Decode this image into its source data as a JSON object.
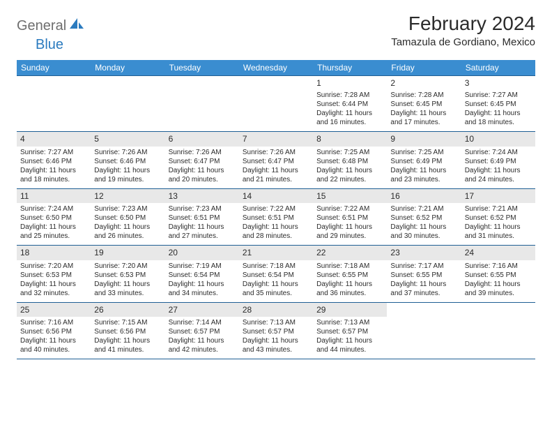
{
  "brand": {
    "text_gray": "General",
    "text_blue": "Blue"
  },
  "title": "February 2024",
  "location": "Tamazula de Gordiano, Mexico",
  "colors": {
    "header_bg": "#3a8dd0",
    "header_text": "#ffffff",
    "row_border": "#1f5f94",
    "band_bg": "#e8e8e8",
    "logo_gray": "#6e6e6e",
    "logo_blue": "#2b7bbf",
    "text": "#2b2b2b",
    "page_bg": "#ffffff"
  },
  "weekdays": [
    "Sunday",
    "Monday",
    "Tuesday",
    "Wednesday",
    "Thursday",
    "Friday",
    "Saturday"
  ],
  "weeks": [
    {
      "banded": false,
      "cells": [
        {
          "day": "",
          "lines": []
        },
        {
          "day": "",
          "lines": []
        },
        {
          "day": "",
          "lines": []
        },
        {
          "day": "",
          "lines": []
        },
        {
          "day": "1",
          "lines": [
            "Sunrise: 7:28 AM",
            "Sunset: 6:44 PM",
            "Daylight: 11 hours",
            "and 16 minutes."
          ]
        },
        {
          "day": "2",
          "lines": [
            "Sunrise: 7:28 AM",
            "Sunset: 6:45 PM",
            "Daylight: 11 hours",
            "and 17 minutes."
          ]
        },
        {
          "day": "3",
          "lines": [
            "Sunrise: 7:27 AM",
            "Sunset: 6:45 PM",
            "Daylight: 11 hours",
            "and 18 minutes."
          ]
        }
      ]
    },
    {
      "banded": true,
      "cells": [
        {
          "day": "4",
          "lines": [
            "Sunrise: 7:27 AM",
            "Sunset: 6:46 PM",
            "Daylight: 11 hours",
            "and 18 minutes."
          ]
        },
        {
          "day": "5",
          "lines": [
            "Sunrise: 7:26 AM",
            "Sunset: 6:46 PM",
            "Daylight: 11 hours",
            "and 19 minutes."
          ]
        },
        {
          "day": "6",
          "lines": [
            "Sunrise: 7:26 AM",
            "Sunset: 6:47 PM",
            "Daylight: 11 hours",
            "and 20 minutes."
          ]
        },
        {
          "day": "7",
          "lines": [
            "Sunrise: 7:26 AM",
            "Sunset: 6:47 PM",
            "Daylight: 11 hours",
            "and 21 minutes."
          ]
        },
        {
          "day": "8",
          "lines": [
            "Sunrise: 7:25 AM",
            "Sunset: 6:48 PM",
            "Daylight: 11 hours",
            "and 22 minutes."
          ]
        },
        {
          "day": "9",
          "lines": [
            "Sunrise: 7:25 AM",
            "Sunset: 6:49 PM",
            "Daylight: 11 hours",
            "and 23 minutes."
          ]
        },
        {
          "day": "10",
          "lines": [
            "Sunrise: 7:24 AM",
            "Sunset: 6:49 PM",
            "Daylight: 11 hours",
            "and 24 minutes."
          ]
        }
      ]
    },
    {
      "banded": true,
      "cells": [
        {
          "day": "11",
          "lines": [
            "Sunrise: 7:24 AM",
            "Sunset: 6:50 PM",
            "Daylight: 11 hours",
            "and 25 minutes."
          ]
        },
        {
          "day": "12",
          "lines": [
            "Sunrise: 7:23 AM",
            "Sunset: 6:50 PM",
            "Daylight: 11 hours",
            "and 26 minutes."
          ]
        },
        {
          "day": "13",
          "lines": [
            "Sunrise: 7:23 AM",
            "Sunset: 6:51 PM",
            "Daylight: 11 hours",
            "and 27 minutes."
          ]
        },
        {
          "day": "14",
          "lines": [
            "Sunrise: 7:22 AM",
            "Sunset: 6:51 PM",
            "Daylight: 11 hours",
            "and 28 minutes."
          ]
        },
        {
          "day": "15",
          "lines": [
            "Sunrise: 7:22 AM",
            "Sunset: 6:51 PM",
            "Daylight: 11 hours",
            "and 29 minutes."
          ]
        },
        {
          "day": "16",
          "lines": [
            "Sunrise: 7:21 AM",
            "Sunset: 6:52 PM",
            "Daylight: 11 hours",
            "and 30 minutes."
          ]
        },
        {
          "day": "17",
          "lines": [
            "Sunrise: 7:21 AM",
            "Sunset: 6:52 PM",
            "Daylight: 11 hours",
            "and 31 minutes."
          ]
        }
      ]
    },
    {
      "banded": true,
      "cells": [
        {
          "day": "18",
          "lines": [
            "Sunrise: 7:20 AM",
            "Sunset: 6:53 PM",
            "Daylight: 11 hours",
            "and 32 minutes."
          ]
        },
        {
          "day": "19",
          "lines": [
            "Sunrise: 7:20 AM",
            "Sunset: 6:53 PM",
            "Daylight: 11 hours",
            "and 33 minutes."
          ]
        },
        {
          "day": "20",
          "lines": [
            "Sunrise: 7:19 AM",
            "Sunset: 6:54 PM",
            "Daylight: 11 hours",
            "and 34 minutes."
          ]
        },
        {
          "day": "21",
          "lines": [
            "Sunrise: 7:18 AM",
            "Sunset: 6:54 PM",
            "Daylight: 11 hours",
            "and 35 minutes."
          ]
        },
        {
          "day": "22",
          "lines": [
            "Sunrise: 7:18 AM",
            "Sunset: 6:55 PM",
            "Daylight: 11 hours",
            "and 36 minutes."
          ]
        },
        {
          "day": "23",
          "lines": [
            "Sunrise: 7:17 AM",
            "Sunset: 6:55 PM",
            "Daylight: 11 hours",
            "and 37 minutes."
          ]
        },
        {
          "day": "24",
          "lines": [
            "Sunrise: 7:16 AM",
            "Sunset: 6:55 PM",
            "Daylight: 11 hours",
            "and 39 minutes."
          ]
        }
      ]
    },
    {
      "banded": true,
      "cells": [
        {
          "day": "25",
          "lines": [
            "Sunrise: 7:16 AM",
            "Sunset: 6:56 PM",
            "Daylight: 11 hours",
            "and 40 minutes."
          ]
        },
        {
          "day": "26",
          "lines": [
            "Sunrise: 7:15 AM",
            "Sunset: 6:56 PM",
            "Daylight: 11 hours",
            "and 41 minutes."
          ]
        },
        {
          "day": "27",
          "lines": [
            "Sunrise: 7:14 AM",
            "Sunset: 6:57 PM",
            "Daylight: 11 hours",
            "and 42 minutes."
          ]
        },
        {
          "day": "28",
          "lines": [
            "Sunrise: 7:13 AM",
            "Sunset: 6:57 PM",
            "Daylight: 11 hours",
            "and 43 minutes."
          ]
        },
        {
          "day": "29",
          "lines": [
            "Sunrise: 7:13 AM",
            "Sunset: 6:57 PM",
            "Daylight: 11 hours",
            "and 44 minutes."
          ]
        },
        {
          "day": "",
          "lines": []
        },
        {
          "day": "",
          "lines": []
        }
      ]
    }
  ]
}
